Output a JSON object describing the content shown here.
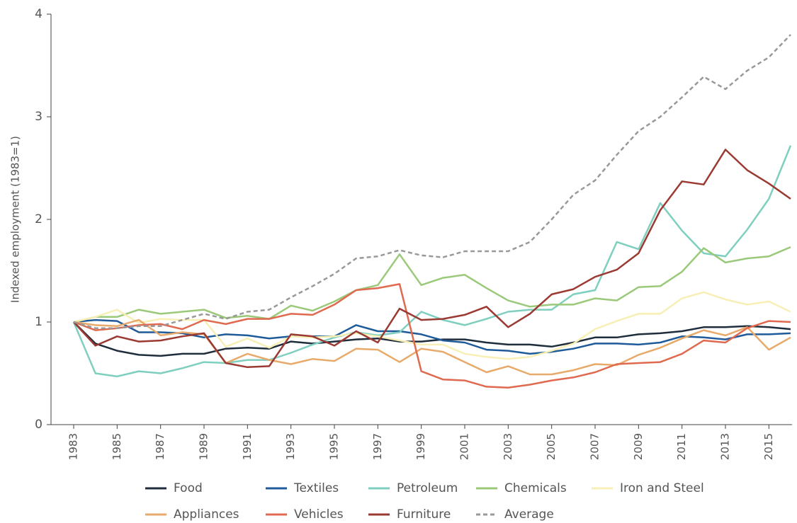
{
  "chart_data": {
    "type": "line",
    "y_label": "Indexed employment (1983=1)",
    "x": [
      1983,
      1984,
      1985,
      1986,
      1987,
      1988,
      1989,
      1990,
      1991,
      1992,
      1993,
      1994,
      1995,
      1996,
      1997,
      1998,
      1999,
      2000,
      2001,
      2002,
      2003,
      2004,
      2005,
      2006,
      2007,
      2008,
      2009,
      2010,
      2011,
      2012,
      2013,
      2014,
      2015,
      2016
    ],
    "xlim": [
      1983,
      2016
    ],
    "xticks": [
      1983,
      1985,
      1987,
      1989,
      1991,
      1993,
      1995,
      1997,
      1999,
      2001,
      2003,
      2005,
      2007,
      2009,
      2011,
      2013,
      2015
    ],
    "ylim": [
      0,
      4
    ],
    "yticks": [
      0,
      1,
      2,
      3,
      4
    ],
    "grid": false,
    "legend": "bottom",
    "series": [
      {
        "name": "Food",
        "color": "#1f2d3d",
        "dash": false,
        "values": [
          1.0,
          0.79,
          0.72,
          0.68,
          0.67,
          0.69,
          0.69,
          0.74,
          0.75,
          0.74,
          0.81,
          0.79,
          0.81,
          0.83,
          0.84,
          0.81,
          0.81,
          0.83,
          0.83,
          0.8,
          0.78,
          0.78,
          0.76,
          0.8,
          0.85,
          0.85,
          0.88,
          0.89,
          0.91,
          0.95,
          0.95,
          0.96,
          0.95,
          0.93
        ]
      },
      {
        "name": "Textiles",
        "color": "#1f5b99",
        "dash": false,
        "values": [
          1.0,
          1.02,
          1.01,
          0.9,
          0.9,
          0.89,
          0.85,
          0.88,
          0.87,
          0.84,
          0.86,
          0.86,
          0.86,
          0.97,
          0.91,
          0.91,
          0.88,
          0.82,
          0.8,
          0.73,
          0.72,
          0.69,
          0.71,
          0.74,
          0.79,
          0.79,
          0.78,
          0.8,
          0.86,
          0.85,
          0.83,
          0.88,
          0.88,
          0.89
        ]
      },
      {
        "name": "Petroleum",
        "color": "#7fcfbf",
        "dash": false,
        "values": [
          1.0,
          0.5,
          0.47,
          0.52,
          0.5,
          0.55,
          0.61,
          0.6,
          0.63,
          0.63,
          0.7,
          0.78,
          0.85,
          0.9,
          0.87,
          0.9,
          1.1,
          1.02,
          0.97,
          1.03,
          1.1,
          1.12,
          1.12,
          1.27,
          1.31,
          1.78,
          1.71,
          2.16,
          1.89,
          1.67,
          1.64,
          1.9,
          2.2,
          2.72
        ]
      },
      {
        "name": "Chemicals",
        "color": "#9bc97a",
        "dash": false,
        "values": [
          1.0,
          1.05,
          1.05,
          1.12,
          1.08,
          1.1,
          1.12,
          1.04,
          1.06,
          1.03,
          1.16,
          1.11,
          1.2,
          1.31,
          1.36,
          1.66,
          1.36,
          1.43,
          1.46,
          1.33,
          1.21,
          1.15,
          1.17,
          1.17,
          1.23,
          1.21,
          1.34,
          1.35,
          1.49,
          1.72,
          1.58,
          1.62,
          1.64,
          1.73
        ]
      },
      {
        "name": "Iron and Steel",
        "color": "#f7efb5",
        "dash": false,
        "values": [
          1.0,
          1.05,
          1.12,
          0.99,
          1.03,
          1.02,
          1.02,
          0.76,
          0.84,
          0.75,
          0.86,
          0.85,
          0.86,
          0.89,
          0.86,
          0.82,
          0.78,
          0.78,
          0.69,
          0.66,
          0.64,
          0.66,
          0.72,
          0.79,
          0.93,
          1.01,
          1.08,
          1.08,
          1.23,
          1.29,
          1.22,
          1.17,
          1.2,
          1.1
        ]
      },
      {
        "name": "Appliances",
        "color": "#e8aa6a",
        "dash": false,
        "values": [
          1.0,
          0.97,
          0.96,
          1.02,
          0.87,
          0.9,
          0.88,
          0.6,
          0.69,
          0.63,
          0.59,
          0.64,
          0.62,
          0.74,
          0.73,
          0.61,
          0.74,
          0.71,
          0.61,
          0.51,
          0.57,
          0.49,
          0.49,
          0.53,
          0.59,
          0.58,
          0.68,
          0.75,
          0.84,
          0.92,
          0.87,
          0.95,
          0.73,
          0.85
        ]
      },
      {
        "name": "Vehicles",
        "color": "#e06a50",
        "dash": false,
        "values": [
          1.0,
          0.92,
          0.94,
          0.97,
          0.98,
          0.93,
          1.02,
          0.98,
          1.03,
          1.03,
          1.08,
          1.07,
          1.17,
          1.31,
          1.33,
          1.37,
          0.52,
          0.44,
          0.43,
          0.37,
          0.36,
          0.39,
          0.43,
          0.46,
          0.51,
          0.59,
          0.6,
          0.61,
          0.69,
          0.82,
          0.8,
          0.94,
          1.01,
          1.0
        ]
      },
      {
        "name": "Furniture",
        "color": "#9b3a32",
        "dash": false,
        "values": [
          1.0,
          0.77,
          0.86,
          0.81,
          0.82,
          0.86,
          0.89,
          0.6,
          0.56,
          0.57,
          0.88,
          0.86,
          0.77,
          0.91,
          0.8,
          1.13,
          1.02,
          1.03,
          1.07,
          1.15,
          0.95,
          1.08,
          1.27,
          1.32,
          1.44,
          1.51,
          1.67,
          2.09,
          2.37,
          2.34,
          2.68,
          2.48,
          2.35,
          2.2
        ]
      },
      {
        "name": "Average",
        "color": "#999999",
        "dash": true,
        "values": [
          1.0,
          0.94,
          0.94,
          0.96,
          0.96,
          1.02,
          1.08,
          1.03,
          1.1,
          1.12,
          1.24,
          1.35,
          1.47,
          1.62,
          1.64,
          1.7,
          1.65,
          1.63,
          1.69,
          1.69,
          1.69,
          1.78,
          2.0,
          2.24,
          2.38,
          2.63,
          2.86,
          3.0,
          3.19,
          3.39,
          3.27,
          3.45,
          3.58,
          3.8
        ]
      }
    ]
  }
}
